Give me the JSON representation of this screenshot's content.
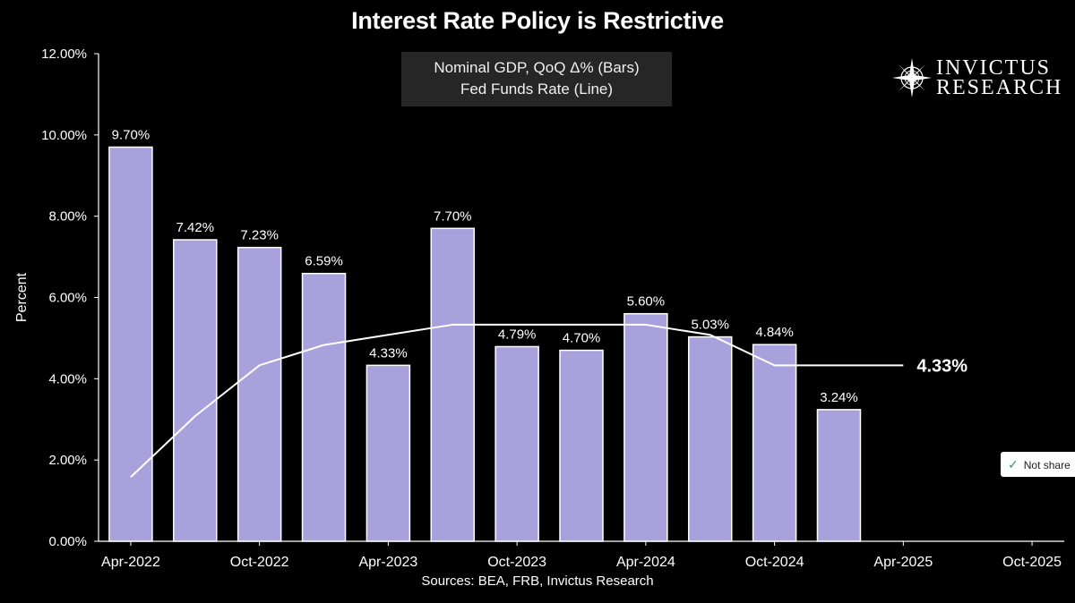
{
  "chart_data": {
    "type": "bar",
    "title": "Interest Rate Policy is Restrictive",
    "legend": [
      "Nominal GDP, QoQ Δ% (Bars)",
      "Fed Funds Rate (Line)"
    ],
    "legend_position": "top-center",
    "ylabel": "Percent",
    "xlabel": "",
    "ylim": [
      0,
      12
    ],
    "y_ticks": [
      "0.00%",
      "2.00%",
      "4.00%",
      "6.00%",
      "8.00%",
      "10.00%",
      "12.00%"
    ],
    "x_ticks": [
      "Apr-2022",
      "Oct-2022",
      "Apr-2023",
      "Oct-2023",
      "Apr-2024",
      "Oct-2024",
      "Apr-2025",
      "Oct-2025"
    ],
    "x_slots": 15,
    "grid": false,
    "series": [
      {
        "name": "Nominal GDP, QoQ Δ%",
        "type": "bar",
        "color": "#a9a1dc",
        "values": [
          9.7,
          7.42,
          7.23,
          6.59,
          4.33,
          7.7,
          4.79,
          4.7,
          5.6,
          5.03,
          4.84,
          3.24
        ],
        "labels": [
          "9.70%",
          "7.42%",
          "7.23%",
          "6.59%",
          "4.33%",
          "7.70%",
          "4.79%",
          "4.70%",
          "5.60%",
          "5.03%",
          "4.84%",
          "3.24%"
        ]
      },
      {
        "name": "Fed Funds Rate",
        "type": "line",
        "color": "#ffffff",
        "x": [
          0,
          1,
          2,
          3,
          4,
          5,
          6,
          7,
          8,
          9,
          10,
          11,
          12
        ],
        "values": [
          1.58,
          3.08,
          4.33,
          4.83,
          5.08,
          5.33,
          5.33,
          5.33,
          5.33,
          5.08,
          4.33,
          4.33,
          4.33
        ],
        "end_label": "4.33%"
      }
    ]
  },
  "branding": {
    "line1": "INVICTUS",
    "line2": "RESEARCH"
  },
  "badge": {
    "text": "Not share"
  },
  "source": "Sources: BEA, FRB, Invictus Research"
}
